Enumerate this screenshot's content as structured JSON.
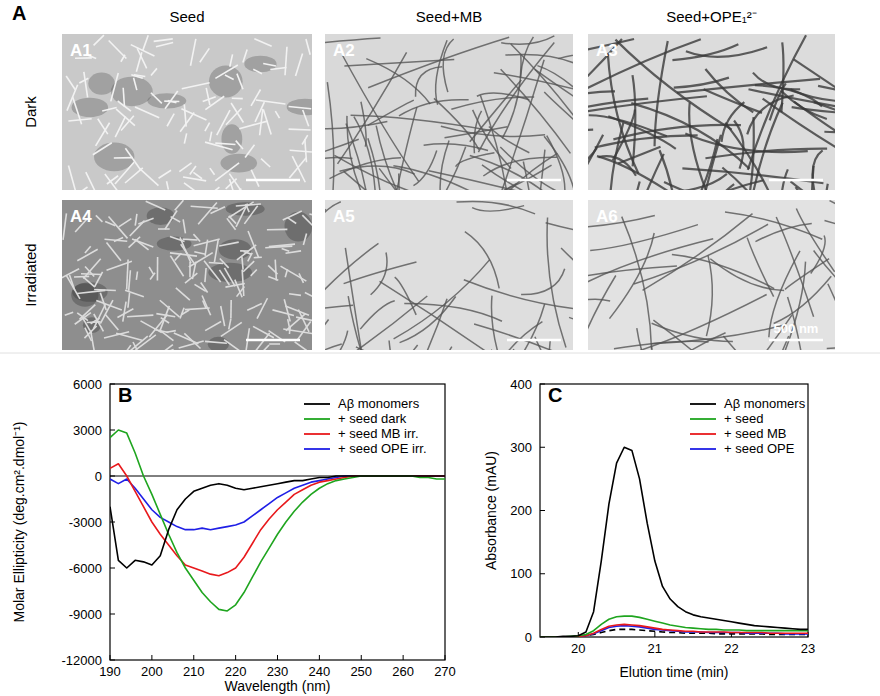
{
  "panel_a": {
    "label": "A",
    "columns": [
      "Seed",
      "Seed+MB",
      "Seed+OPE₁²⁻"
    ],
    "rows": [
      "Dark",
      "Irradiated"
    ],
    "images": [
      [
        "A1",
        "A2",
        "A3"
      ],
      [
        "A4",
        "A5",
        "A6"
      ]
    ],
    "scale_bar_label": "500 nm"
  },
  "chart_data": [
    {
      "type": "line",
      "title": "B",
      "x_label": "Wavelength (nm)",
      "y_label": "Molar Ellipticity (deg.cm².dmol⁻¹)",
      "x": [
        190,
        192,
        194,
        196,
        198,
        200,
        202,
        204,
        206,
        208,
        210,
        212,
        214,
        216,
        218,
        220,
        222,
        224,
        226,
        228,
        230,
        232,
        234,
        236,
        238,
        240,
        242,
        244,
        246,
        248,
        250,
        252,
        254,
        256,
        258,
        260,
        262,
        264,
        266,
        268,
        270
      ],
      "xlim": [
        190,
        270
      ],
      "xticks": [
        190,
        200,
        210,
        220,
        230,
        240,
        250,
        260,
        270
      ],
      "ylim": [
        -12000,
        6000
      ],
      "yticks": [
        -12000,
        -9000,
        -6000,
        -3000,
        0,
        3000,
        6000
      ],
      "grid": false,
      "legend": "upper right",
      "series": [
        {
          "name": "Aβ monomers",
          "color": "#000000",
          "values": [
            -2000,
            -5500,
            -6000,
            -5500,
            -5600,
            -5800,
            -5200,
            -3500,
            -2200,
            -1500,
            -1000,
            -800,
            -600,
            -500,
            -600,
            -800,
            -900,
            -800,
            -700,
            -600,
            -500,
            -400,
            -300,
            -300,
            -200,
            -100,
            -100,
            0,
            0,
            0,
            0,
            0,
            0,
            0,
            0,
            0,
            0,
            0,
            0,
            0,
            0
          ]
        },
        {
          "name": "+ seed dark",
          "color": "#1fa51f",
          "values": [
            2500,
            3000,
            2800,
            1500,
            0,
            -1200,
            -2500,
            -3800,
            -5000,
            -6000,
            -6800,
            -7600,
            -8200,
            -8700,
            -8800,
            -8400,
            -7600,
            -6600,
            -5600,
            -4700,
            -3800,
            -3000,
            -2300,
            -1700,
            -1200,
            -800,
            -500,
            -300,
            -200,
            -100,
            0,
            0,
            0,
            0,
            0,
            0,
            0,
            -100,
            -100,
            -200,
            -200
          ]
        },
        {
          "name": "+ seed MB irr.",
          "color": "#e8191c",
          "values": [
            500,
            800,
            0,
            -1000,
            -2000,
            -3000,
            -3800,
            -4500,
            -5200,
            -5800,
            -6000,
            -6200,
            -6400,
            -6500,
            -6300,
            -6000,
            -5300,
            -4400,
            -3500,
            -2800,
            -2200,
            -1700,
            -1200,
            -900,
            -600,
            -400,
            -300,
            -200,
            -100,
            0,
            0,
            0,
            0,
            0,
            0,
            0,
            0,
            0,
            0,
            0,
            0
          ]
        },
        {
          "name": "+ seed OPE irr.",
          "color": "#1f1fe6",
          "values": [
            -200,
            -500,
            -200,
            -800,
            -1500,
            -2200,
            -2700,
            -3000,
            -3300,
            -3500,
            -3500,
            -3400,
            -3500,
            -3400,
            -3300,
            -3200,
            -3000,
            -2600,
            -2200,
            -1800,
            -1400,
            -1100,
            -800,
            -600,
            -400,
            -300,
            -200,
            -100,
            0,
            0,
            0,
            0,
            0,
            0,
            0,
            0,
            0,
            0,
            0,
            0,
            0
          ]
        }
      ]
    },
    {
      "type": "line",
      "title": "C",
      "x_label": "Elution time (min)",
      "y_label": "Absorbance (mAU)",
      "x": [
        19.5,
        19.6,
        19.7,
        19.8,
        19.9,
        20.0,
        20.1,
        20.2,
        20.3,
        20.4,
        20.5,
        20.6,
        20.7,
        20.8,
        20.9,
        21.0,
        21.1,
        21.2,
        21.3,
        21.4,
        21.5,
        21.6,
        21.7,
        21.8,
        21.9,
        22.0,
        22.1,
        22.2,
        22.3,
        22.4,
        22.5,
        22.6,
        22.7,
        22.8,
        22.9,
        23.0
      ],
      "xlim": [
        19.5,
        23
      ],
      "xticks": [
        20,
        21,
        22,
        23
      ],
      "ylim": [
        0,
        400
      ],
      "yticks": [
        0,
        100,
        200,
        300,
        400
      ],
      "grid": false,
      "legend": "upper right",
      "series": [
        {
          "name": "Aβ monomers",
          "color": "#000000",
          "values": [
            0,
            0,
            0,
            1,
            1,
            2,
            8,
            40,
            120,
            210,
            275,
            300,
            295,
            250,
            180,
            120,
            80,
            60,
            48,
            40,
            35,
            32,
            30,
            28,
            26,
            24,
            22,
            20,
            18,
            17,
            16,
            15,
            14,
            13,
            12,
            12
          ]
        },
        {
          "name": "+ seed",
          "color": "#1fa51f",
          "values": [
            0,
            0,
            0,
            0,
            1,
            2,
            4,
            10,
            20,
            28,
            32,
            33,
            33,
            31,
            28,
            25,
            22,
            19,
            17,
            15,
            14,
            13,
            12,
            12,
            11,
            11,
            11,
            10,
            10,
            10,
            10,
            10,
            10,
            10,
            10,
            10
          ]
        },
        {
          "name": "+ seed MB",
          "color": "#e8191c",
          "values": [
            0,
            0,
            0,
            0,
            0,
            1,
            2,
            6,
            12,
            17,
            19,
            20,
            19,
            18,
            16,
            14,
            12,
            11,
            10,
            9,
            9,
            8,
            8,
            8,
            8,
            7,
            7,
            7,
            7,
            7,
            6,
            6,
            6,
            6,
            6,
            6
          ]
        },
        {
          "name": "+ seed OPE",
          "color": "#1f1fe6",
          "values": [
            0,
            0,
            0,
            0,
            0,
            1,
            2,
            5,
            10,
            15,
            17,
            18,
            17,
            16,
            14,
            12,
            11,
            10,
            9,
            8,
            8,
            8,
            7,
            7,
            7,
            7,
            7,
            6,
            6,
            6,
            6,
            6,
            5,
            5,
            5,
            5
          ]
        },
        {
          "color": "#000000",
          "line_style": "dashed",
          "values": [
            0,
            0,
            0,
            0,
            0,
            1,
            2,
            4,
            7,
            10,
            12,
            12,
            12,
            11,
            10,
            9,
            8,
            7,
            7,
            6,
            6,
            6,
            6,
            5,
            5,
            5,
            5,
            5,
            5,
            5,
            4,
            4,
            4,
            4,
            4,
            4
          ]
        }
      ]
    }
  ]
}
